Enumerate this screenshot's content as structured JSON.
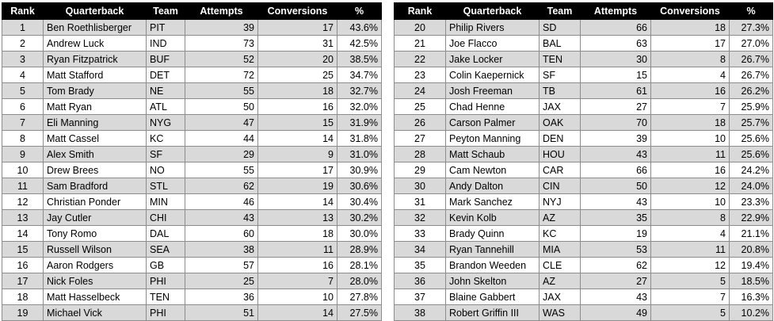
{
  "headers": [
    "Rank",
    "Quarterback",
    "Team",
    "Attempts",
    "Conversions",
    "%"
  ],
  "left_rows": [
    [
      "1",
      "Ben Roethlisberger",
      "PIT",
      "39",
      "17",
      "43.6%"
    ],
    [
      "2",
      "Andrew Luck",
      "IND",
      "73",
      "31",
      "42.5%"
    ],
    [
      "3",
      "Ryan Fitzpatrick",
      "BUF",
      "52",
      "20",
      "38.5%"
    ],
    [
      "4",
      "Matt Stafford",
      "DET",
      "72",
      "25",
      "34.7%"
    ],
    [
      "5",
      "Tom Brady",
      "NE",
      "55",
      "18",
      "32.7%"
    ],
    [
      "6",
      "Matt Ryan",
      "ATL",
      "50",
      "16",
      "32.0%"
    ],
    [
      "7",
      "Eli Manning",
      "NYG",
      "47",
      "15",
      "31.9%"
    ],
    [
      "8",
      "Matt Cassel",
      "KC",
      "44",
      "14",
      "31.8%"
    ],
    [
      "9",
      "Alex Smith",
      "SF",
      "29",
      "9",
      "31.0%"
    ],
    [
      "10",
      "Drew Brees",
      "NO",
      "55",
      "17",
      "30.9%"
    ],
    [
      "11",
      "Sam Bradford",
      "STL",
      "62",
      "19",
      "30.6%"
    ],
    [
      "12",
      "Christian Ponder",
      "MIN",
      "46",
      "14",
      "30.4%"
    ],
    [
      "13",
      "Jay Cutler",
      "CHI",
      "43",
      "13",
      "30.2%"
    ],
    [
      "14",
      "Tony Romo",
      "DAL",
      "60",
      "18",
      "30.0%"
    ],
    [
      "15",
      "Russell Wilson",
      "SEA",
      "38",
      "11",
      "28.9%"
    ],
    [
      "16",
      "Aaron Rodgers",
      "GB",
      "57",
      "16",
      "28.1%"
    ],
    [
      "17",
      "Nick Foles",
      "PHI",
      "25",
      "7",
      "28.0%"
    ],
    [
      "18",
      "Matt Hasselbeck",
      "TEN",
      "36",
      "10",
      "27.8%"
    ],
    [
      "19",
      "Michael Vick",
      "PHI",
      "51",
      "14",
      "27.5%"
    ]
  ],
  "right_rows": [
    [
      "20",
      "Philip Rivers",
      "SD",
      "66",
      "18",
      "27.3%"
    ],
    [
      "21",
      "Joe Flacco",
      "BAL",
      "63",
      "17",
      "27.0%"
    ],
    [
      "22",
      "Jake Locker",
      "TEN",
      "30",
      "8",
      "26.7%"
    ],
    [
      "23",
      "Colin Kaepernick",
      "SF",
      "15",
      "4",
      "26.7%"
    ],
    [
      "24",
      "Josh Freeman",
      "TB",
      "61",
      "16",
      "26.2%"
    ],
    [
      "25",
      "Chad Henne",
      "JAX",
      "27",
      "7",
      "25.9%"
    ],
    [
      "26",
      "Carson Palmer",
      "OAK",
      "70",
      "18",
      "25.7%"
    ],
    [
      "27",
      "Peyton Manning",
      "DEN",
      "39",
      "10",
      "25.6%"
    ],
    [
      "28",
      "Matt Schaub",
      "HOU",
      "43",
      "11",
      "25.6%"
    ],
    [
      "29",
      "Cam Newton",
      "CAR",
      "66",
      "16",
      "24.2%"
    ],
    [
      "30",
      "Andy Dalton",
      "CIN",
      "50",
      "12",
      "24.0%"
    ],
    [
      "31",
      "Mark Sanchez",
      "NYJ",
      "43",
      "10",
      "23.3%"
    ],
    [
      "32",
      "Kevin Kolb",
      "AZ",
      "35",
      "8",
      "22.9%"
    ],
    [
      "33",
      "Brady Quinn",
      "KC",
      "19",
      "4",
      "21.1%"
    ],
    [
      "34",
      "Ryan Tannehill",
      "MIA",
      "53",
      "11",
      "20.8%"
    ],
    [
      "35",
      "Brandon Weeden",
      "CLE",
      "62",
      "12",
      "19.4%"
    ],
    [
      "36",
      "John Skelton",
      "AZ",
      "27",
      "5",
      "18.5%"
    ],
    [
      "37",
      "Blaine Gabbert",
      "JAX",
      "43",
      "7",
      "16.3%"
    ],
    [
      "38",
      "Robert Griffin III",
      "WAS",
      "49",
      "5",
      "10.2%"
    ]
  ],
  "colors": {
    "header_bg": "#000000",
    "header_text": "#ffffff",
    "stripe": "#d9d9d9",
    "row_bg": "#ffffff",
    "border": "#8c8c8c"
  }
}
